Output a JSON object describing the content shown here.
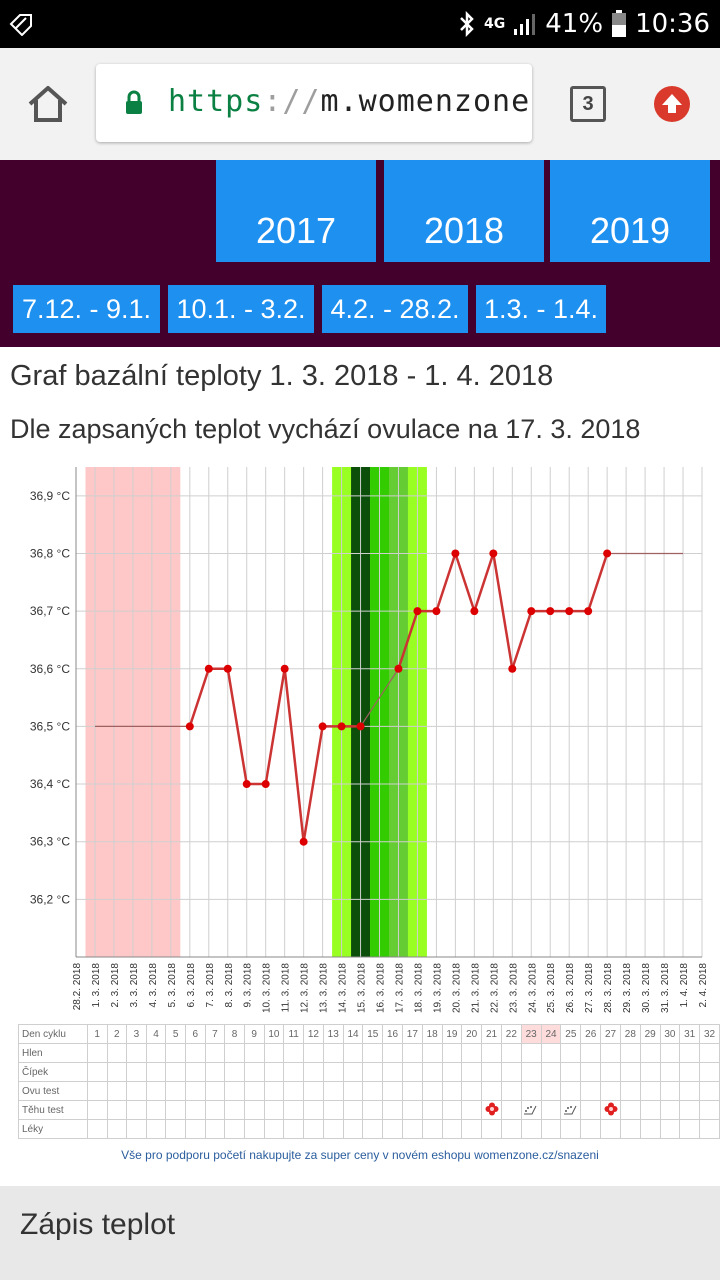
{
  "status_bar": {
    "network": "4G",
    "battery": "41%",
    "time": "10:36"
  },
  "browser": {
    "url_scheme": "https",
    "url_separator": "://",
    "url_host": "m.womenzone.cz",
    "tab_count": "3"
  },
  "nav": {
    "years": [
      "2017",
      "2018",
      "2019"
    ],
    "ranges": [
      "7.12. - 9.1.",
      "10.1. - 3.2.",
      "4.2. - 28.2.",
      "1.3. - 1.4."
    ]
  },
  "page": {
    "title": "Graf bazální teploty 1. 3. 2018 - 1. 4. 2018",
    "subtitle": "Dle zapsaných teplot vychází ovulace na 17. 3. 2018"
  },
  "chart_data": {
    "type": "line",
    "x": [
      "28.2. 2018",
      "1. 3. 2018",
      "2. 3. 2018",
      "3. 3. 2018",
      "4. 3. 2018",
      "5. 3. 2018",
      "6. 3. 2018",
      "7. 3. 2018",
      "8. 3. 2018",
      "9. 3. 2018",
      "10. 3. 2018",
      "11. 3. 2018",
      "12. 3. 2018",
      "13. 3. 2018",
      "14. 3. 2018",
      "15. 3. 2018",
      "16. 3. 2018",
      "17. 3. 2018",
      "18. 3. 2018",
      "19. 3. 2018",
      "20. 3. 2018",
      "21. 3. 2018",
      "22. 3. 2018",
      "23. 3. 2018",
      "24. 3. 2018",
      "25. 3. 2018",
      "26. 3. 2018",
      "27. 3. 2018",
      "28. 3. 2018",
      "29. 3. 2018",
      "30. 3. 2018",
      "31. 3. 2018",
      "1. 4. 2018",
      "2. 4. 2018"
    ],
    "y_ticks": [
      "36,2 °C",
      "36,3 °C",
      "36,4 °C",
      "36,5 °C",
      "36,6 °C",
      "36,7 °C",
      "36,8 °C",
      "36,9 °C"
    ],
    "ylim": [
      36.1,
      36.95
    ],
    "series": [
      {
        "values": [
          null,
          36.5,
          36.5,
          36.5,
          36.5,
          36.5,
          36.5,
          36.6,
          36.6,
          36.4,
          36.4,
          36.6,
          36.3,
          36.5,
          36.5,
          36.5,
          null,
          36.6,
          36.7,
          36.7,
          36.8,
          36.7,
          36.8,
          36.6,
          36.7,
          36.7,
          36.7,
          36.7,
          36.8,
          36.8,
          36.8,
          36.8,
          36.8,
          null
        ]
      }
    ],
    "marked_points": [
      6,
      7,
      8,
      9,
      10,
      11,
      12,
      13,
      14,
      15,
      17,
      18,
      19,
      20,
      21,
      22,
      23,
      24,
      25,
      26,
      27,
      28
    ],
    "interpolated_spans": [
      [
        1,
        6
      ],
      [
        15,
        17
      ],
      [
        28,
        32
      ]
    ],
    "bands": [
      {
        "from": 0.5,
        "to": 5.5,
        "color": "#ffc8c8"
      },
      {
        "from": 13.5,
        "to": 18.5,
        "color": "#99ff22"
      },
      {
        "from": 14.5,
        "to": 15.5,
        "color": "#0b4f0b"
      },
      {
        "from": 15.5,
        "to": 16.5,
        "color": "#33cc00"
      },
      {
        "from": 16.5,
        "to": 17.5,
        "color": "#66cc33"
      }
    ],
    "line_color": "#cc3333",
    "grid": true
  },
  "cycle_table": {
    "header_label": "Den cyklu",
    "days": [
      "1",
      "2",
      "3",
      "4",
      "5",
      "6",
      "7",
      "8",
      "9",
      "10",
      "11",
      "12",
      "13",
      "14",
      "15",
      "16",
      "17",
      "18",
      "19",
      "20",
      "21",
      "22",
      "23",
      "24",
      "25",
      "26",
      "27",
      "28",
      "29",
      "30",
      "31",
      "32"
    ],
    "highlighted_days": [
      "23",
      "24"
    ],
    "rows": [
      "Hlen",
      "Čípek",
      "Ovu test",
      "Těhu test",
      "Léky"
    ],
    "tehu_marks": [
      {
        "day": "21",
        "icon": "flower-icon"
      },
      {
        "day": "23",
        "icon": "test-strip-icon"
      },
      {
        "day": "25",
        "icon": "test-strip-icon"
      },
      {
        "day": "27",
        "icon": "flower-icon"
      }
    ]
  },
  "promo": "Vše pro podporu početí nakupujte za super ceny v novém eshopu womenzone.cz/snazeni",
  "bottom_section": {
    "title": "Zápis teplot"
  },
  "colors": {
    "nav_bg": "#44002d",
    "nav_button": "#1e90f0",
    "bottom_bg": "#e8e8e8"
  }
}
